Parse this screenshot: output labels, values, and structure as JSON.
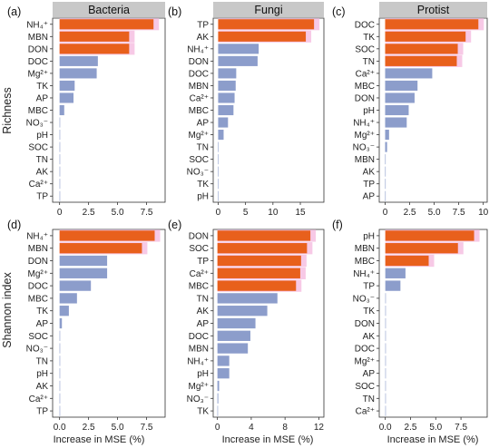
{
  "colors": {
    "important": "#E8601C",
    "important_edge": "#A6620F",
    "other": "#8C9DCB",
    "shadow": "#F7C9E6",
    "strip": "#C8C8C8"
  },
  "row_labels": [
    "Richness",
    "Shannon index"
  ],
  "x_label": "Increase in MSE (%)",
  "chart_data": [
    {
      "type": "bar",
      "panel": "(a)",
      "title": "Bacteria",
      "row": "Richness",
      "categories": [
        "NH₄⁺",
        "MBN",
        "DON",
        "DOC",
        "Mg²⁺",
        "TK",
        "AP",
        "MBC",
        "NO₃⁻",
        "pH",
        "SOC",
        "TN",
        "AK",
        "Ca²⁺",
        "TP"
      ],
      "values": [
        8.1,
        6.0,
        6.0,
        3.3,
        3.2,
        1.3,
        1.2,
        0.4,
        0,
        0,
        0,
        0,
        0,
        0,
        0
      ],
      "highlight": [
        true,
        true,
        true,
        false,
        false,
        false,
        false,
        false,
        false,
        false,
        false,
        false,
        false,
        false,
        false
      ],
      "xlim": [
        -0.6,
        9.1
      ],
      "xticks": [
        0,
        2.5,
        5.0,
        7.5
      ],
      "xticklabels": [
        "0",
        "2.5",
        "5.0",
        "7.5"
      ]
    },
    {
      "type": "bar",
      "panel": "(b)",
      "title": "Fungi",
      "row": "Richness",
      "categories": [
        "TP",
        "AK",
        "NH₄⁺",
        "DON",
        "DOC",
        "MBN",
        "Ca²⁺",
        "MBC",
        "AP",
        "Mg²⁺",
        "TN",
        "SOC",
        "NO₃⁻",
        "TK",
        "pH"
      ],
      "values": [
        17.5,
        16.0,
        7.4,
        7.2,
        3.3,
        3.2,
        3.0,
        2.8,
        1.8,
        1.0,
        0.1,
        0,
        0,
        0,
        0
      ],
      "highlight": [
        true,
        true,
        false,
        false,
        false,
        false,
        false,
        false,
        false,
        false,
        false,
        false,
        false,
        false,
        false
      ],
      "xlim": [
        -0.9,
        19.3
      ],
      "xticks": [
        0,
        5,
        10,
        15
      ],
      "xticklabels": [
        "0",
        "5",
        "10",
        "15"
      ]
    },
    {
      "type": "bar",
      "panel": "(c)",
      "title": "Protist",
      "row": "Richness",
      "categories": [
        "DOC",
        "TK",
        "SOC",
        "TN",
        "Ca²⁺",
        "MBC",
        "DON",
        "pH",
        "NH₄⁺",
        "Mg²⁺",
        "NO₃⁻",
        "MBN",
        "AK",
        "TP",
        "AP"
      ],
      "values": [
        9.5,
        8.2,
        7.4,
        7.3,
        4.8,
        3.3,
        3.0,
        2.4,
        2.2,
        0.4,
        0.2,
        0,
        0,
        0,
        0
      ],
      "highlight": [
        true,
        true,
        true,
        true,
        false,
        false,
        false,
        false,
        false,
        false,
        false,
        false,
        false,
        false,
        false
      ],
      "xlim": [
        -0.6,
        10.4
      ],
      "xticks": [
        0,
        2.5,
        5.0,
        7.5,
        10
      ],
      "xticklabels": [
        "0",
        "2.5",
        "5.0",
        "7.5",
        "10"
      ]
    },
    {
      "type": "bar",
      "panel": "(d)",
      "title": "",
      "row": "Shannon index",
      "categories": [
        "NH₄⁺",
        "MBN",
        "DON",
        "Mg²⁺",
        "DOC",
        "MBC",
        "TK",
        "AP",
        "SOC",
        "NO₃⁻",
        "TN",
        "pH",
        "AK",
        "Ca²⁺",
        "TP"
      ],
      "values": [
        8.2,
        7.1,
        4.1,
        4.1,
        2.7,
        1.5,
        0.8,
        0.2,
        0,
        0,
        0,
        0,
        0,
        0,
        0
      ],
      "highlight": [
        true,
        true,
        false,
        false,
        false,
        false,
        false,
        false,
        false,
        false,
        false,
        false,
        false,
        false,
        false
      ],
      "xlim": [
        -0.6,
        9.1
      ],
      "xticks": [
        0,
        2.5,
        5.0,
        7.5
      ],
      "xticklabels": [
        "0.0",
        "2.5",
        "5.0",
        "7.5"
      ]
    },
    {
      "type": "bar",
      "panel": "(e)",
      "title": "",
      "row": "Shannon index",
      "categories": [
        "DON",
        "SOC",
        "TP",
        "Ca²⁺",
        "MBC",
        "TN",
        "AK",
        "AP",
        "DOC",
        "MBN",
        "NH₄⁺",
        "pH",
        "Mg²⁺",
        "NO₃⁻",
        "TK"
      ],
      "values": [
        11.0,
        10.6,
        9.9,
        9.8,
        9.3,
        7.1,
        5.9,
        4.5,
        3.9,
        3.6,
        1.4,
        1.4,
        0.2,
        0.1,
        0
      ],
      "highlight": [
        true,
        true,
        true,
        true,
        true,
        false,
        false,
        false,
        false,
        false,
        false,
        false,
        false,
        false,
        false
      ],
      "xlim": [
        -0.5,
        12.6
      ],
      "xticks": [
        0,
        4,
        8,
        12
      ],
      "xticklabels": [
        "0",
        "4",
        "8",
        "12"
      ]
    },
    {
      "type": "bar",
      "panel": "(f)",
      "title": "",
      "row": "Shannon index",
      "categories": [
        "pH",
        "MBN",
        "MBC",
        "NH₄⁺",
        "TP",
        "NO₃⁻",
        "TK",
        "DON",
        "AK",
        "DOC",
        "Mg²⁺",
        "AP",
        "SOC",
        "TN",
        "Ca²⁺"
      ],
      "values": [
        8.8,
        7.2,
        4.3,
        2.0,
        1.5,
        0,
        0,
        0,
        0,
        0,
        0,
        0,
        0,
        0,
        0
      ],
      "highlight": [
        true,
        true,
        true,
        false,
        false,
        false,
        false,
        false,
        false,
        false,
        false,
        false,
        false,
        false,
        false
      ],
      "xlim": [
        -0.6,
        10.1
      ],
      "xticks": [
        0,
        2.5,
        5.0,
        7.5
      ],
      "xticklabels": [
        "0.0",
        "2.5",
        "5.0",
        "7.5"
      ]
    }
  ]
}
